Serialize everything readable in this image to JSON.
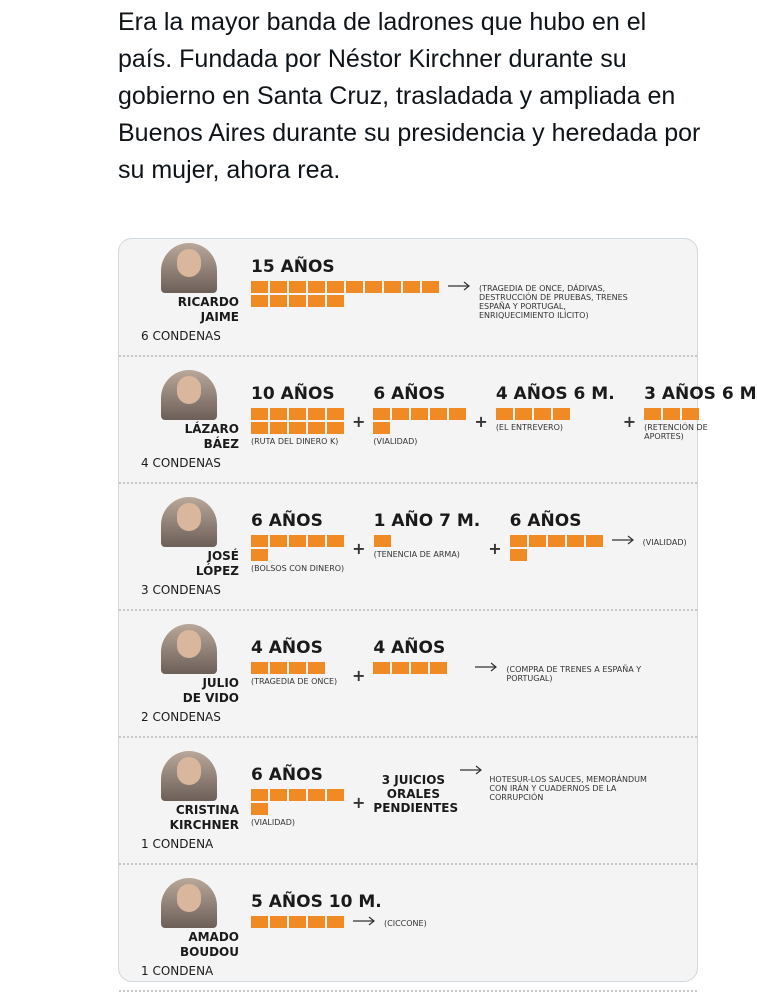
{
  "tweet": {
    "text": "Era la mayor banda de ladrones que hubo en el país. Fundada por Néstor Kirchner durante su gobierno en Santa Cruz, trasladada y ampliada en Buenos Aires durante su presidencia y heredada por su mujer, ahora rea."
  },
  "joiner": "+",
  "rows": [
    {
      "name": [
        "RICARDO",
        "JAIME"
      ],
      "convictions": "6 CONDENAS",
      "sentences": [
        {
          "label": "15 AÑOS",
          "years": 15,
          "note": "(TRAGEDIA DE ONCE, DÁDIVAS, DESTRUCCIÓN DE PRUEBAS, TRENES ESPAÑA Y PORTUGAL, ENRIQUECIMIENTO ILÍCITO)",
          "arrow": true
        }
      ]
    },
    {
      "name": [
        "LÁZARO",
        "BÁEZ"
      ],
      "convictions": "4 CONDENAS",
      "sentences": [
        {
          "label": "10 AÑOS",
          "years": 10,
          "note": "(RUTA DEL DINERO K)"
        },
        {
          "label": "6 AÑOS",
          "years": 6,
          "note": "(VIALIDAD)"
        },
        {
          "label": "4 AÑOS 6 M.",
          "years": 4,
          "note": "(EL ENTREVERO)"
        },
        {
          "label": "3 AÑOS 6 M",
          "years": 3,
          "note": "(RETENCIÓN DE APORTES)"
        }
      ]
    },
    {
      "name": [
        "JOSÉ",
        "LÓPEZ"
      ],
      "convictions": "3 CONDENAS",
      "sentences": [
        {
          "label": "6 AÑOS",
          "years": 6,
          "note": "(BOLSOS CON DINERO)"
        },
        {
          "label": "1 AÑO 7 M.",
          "years": 1,
          "note": "(TENENCIA DE ARMA)"
        },
        {
          "label": "6 AÑOS",
          "years": 6,
          "note": "(VIALIDAD)",
          "arrow": true
        }
      ]
    },
    {
      "name": [
        "JULIO",
        "DE VIDO"
      ],
      "convictions": "2 CONDENAS",
      "sentences": [
        {
          "label": "4 AÑOS",
          "years": 4,
          "note": "(TRAGEDIA DE ONCE)"
        },
        {
          "label": "4 AÑOS",
          "years": 4,
          "note": "(COMPRA DE TRENES A ESPAÑA Y PORTUGAL)",
          "arrow": true
        }
      ]
    },
    {
      "name": [
        "CRISTINA",
        "KIRCHNER"
      ],
      "convictions": "1 CONDENA",
      "sentences": [
        {
          "label": "6 AÑOS",
          "years": 6,
          "note": "(VIALIDAD)"
        },
        {
          "label": "3 JUICIOS ORALES PENDIENTES",
          "note": "HOTESUR-LOS SAUCES, MEMORÁNDUM CON IRÁN Y CUADERNOS DE LA CORRUPCIÓN",
          "arrow": true
        }
      ]
    },
    {
      "name": [
        "AMADO",
        "BOUDOU"
      ],
      "convictions": "1 CONDENA",
      "sentences": [
        {
          "label": "5 AÑOS 10 M.",
          "years": 5,
          "note": "(CICCONE)",
          "arrow": true
        }
      ]
    }
  ]
}
